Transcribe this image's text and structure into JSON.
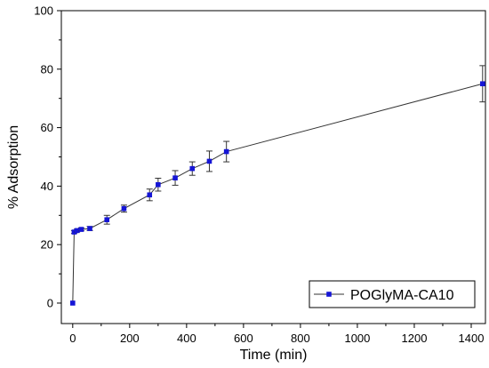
{
  "chart_data": {
    "type": "line",
    "xlabel": "Time (min)",
    "ylabel": "% Adsorption",
    "xlim": [
      -40,
      1450
    ],
    "ylim": [
      -7,
      100
    ],
    "xticks": [
      0,
      200,
      400,
      600,
      800,
      1000,
      1200,
      1400
    ],
    "yticks": [
      0,
      20,
      40,
      60,
      80,
      100
    ],
    "legend_position": "bottom-right",
    "grid": false,
    "colors": {
      "series": "#1515d6",
      "line": "#333333",
      "axis": "#000000"
    },
    "series": [
      {
        "name": "POGlyMA-CA10",
        "x": [
          0,
          5,
          15,
          30,
          60,
          120,
          180,
          270,
          300,
          360,
          420,
          480,
          540,
          1440
        ],
        "y": [
          0,
          24.3,
          24.8,
          25.2,
          25.5,
          28.5,
          32.3,
          37,
          40.5,
          42.8,
          46,
          48.5,
          51.8,
          75
        ],
        "err": [
          0,
          0.5,
          0.5,
          0.5,
          0.7,
          1.5,
          1.2,
          2,
          2.2,
          2.5,
          2.3,
          3.5,
          3.5,
          6.2
        ]
      }
    ]
  }
}
